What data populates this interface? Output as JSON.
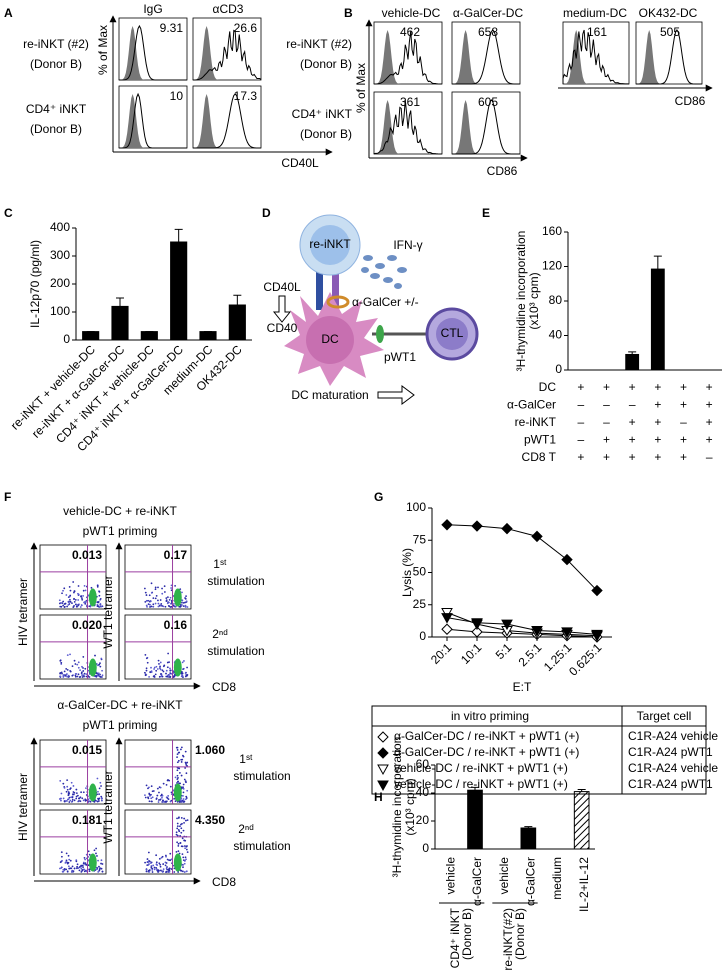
{
  "panel_letters": [
    "A",
    "B",
    "C",
    "D",
    "E",
    "F",
    "G",
    "H"
  ],
  "panel_a": {
    "columns": [
      "IgG",
      "αCD3"
    ],
    "rows": [
      [
        "re-iNKT (#2)",
        "(Donor B)"
      ],
      [
        "CD4⁺ iNKT",
        "(Donor B)"
      ]
    ],
    "y_label": "% of Max",
    "x_label": "CD40L",
    "values": [
      [
        9.31,
        26.6
      ],
      [
        10,
        17.3
      ]
    ]
  },
  "panel_b": {
    "columns": [
      "vehicle-DC",
      "α-GalCer-DC",
      "medium-DC",
      "OK432-DC"
    ],
    "rows": [
      [
        "re-iNKT (#2)",
        "(Donor B)"
      ],
      [
        "CD4⁺ iNKT",
        "(Donor B)"
      ]
    ],
    "y_label": "% of Max",
    "x_labels": [
      "CD86",
      "CD86"
    ],
    "values": [
      [
        462,
        658
      ],
      [
        361,
        605
      ]
    ],
    "values_right": [
      161,
      505
    ]
  },
  "panel_d": {
    "re_inkt": "re-iNKT",
    "ifn": "IFN-γ",
    "cd40l": "CD40L",
    "cd40": "CD40",
    "galcer": "α-GalCer +/-",
    "dc": "DC",
    "ctl": "CTL",
    "pwt1": "pWT1",
    "maturation": "DC maturation"
  },
  "panel_f": {
    "groups": [
      {
        "title": [
          "vehicle-DC + re-iNKT",
          "pWT1 priming"
        ],
        "y_labels": [
          "HIV tetramer",
          "WT1 tetramer"
        ],
        "x_label": "CD8",
        "stimulations": [
          [
            "1ˢᵗ",
            "stimulation"
          ],
          [
            "2ⁿᵈ",
            "stimulation"
          ]
        ],
        "quadrants": [
          [
            "0.013",
            "0.17"
          ],
          [
            "0.020",
            "0.16"
          ]
        ]
      },
      {
        "title": [
          "α-GalCer-DC + re-iNKT",
          "pWT1 priming"
        ],
        "y_labels": [
          "HIV tetramer",
          "WT1 tetramer"
        ],
        "x_label": "CD8",
        "stimulations": [
          [
            "1ˢᵗ",
            "stimulation"
          ],
          [
            "2ⁿᵈ",
            "stimulation"
          ]
        ],
        "quadrants": [
          [
            "0.015",
            "1.060"
          ],
          [
            "0.181",
            "4.350"
          ]
        ]
      }
    ]
  },
  "chart_data": [
    {
      "type": "bar",
      "y_label": [
        "IL-12p70 (pg/ml)"
      ],
      "categories": [
        "re-iNKT + vehicle-DC",
        "re-iNKT + α-GalCer-DC",
        "CD4⁺ iNKT + vehicle-DC",
        "CD4⁺ iNKT + α-GalCer-DC",
        "medium-DC",
        "OK432-DC"
      ],
      "values": [
        30,
        120,
        30,
        350,
        30,
        125
      ],
      "errors": [
        0,
        30,
        0,
        45,
        0,
        35
      ],
      "color": "#000000",
      "ylim": [
        0,
        400
      ],
      "yticks": [
        0,
        100,
        200,
        300,
        400
      ]
    },
    {
      "type": "bar",
      "y_label": [
        "³H-thymidine incorporation",
        "(x10³ cpm)"
      ],
      "values": [
        0,
        0,
        18,
        117,
        0,
        0
      ],
      "errors": [
        0,
        0,
        3,
        15,
        0,
        0
      ],
      "color": "#000000",
      "ylim": [
        0,
        160
      ],
      "yticks": [
        0,
        40,
        80,
        120,
        160
      ],
      "conditions": [
        {
          "label": "DC",
          "marks": [
            "+",
            "+",
            "+",
            "+",
            "+",
            "+"
          ]
        },
        {
          "label": "α-GalCer",
          "marks": [
            "–",
            "–",
            "–",
            "+",
            "+",
            "+"
          ]
        },
        {
          "label": "re-iNKT",
          "marks": [
            "–",
            "–",
            "+",
            "+",
            "–",
            "+"
          ]
        },
        {
          "label": "pWT1",
          "marks": [
            "–",
            "+",
            "+",
            "+",
            "+",
            "+"
          ]
        },
        {
          "label": "CD8 T",
          "marks": [
            "+",
            "+",
            "+",
            "+",
            "+",
            "–"
          ]
        }
      ]
    },
    {
      "type": "line",
      "y_label": "Lysis (%)",
      "x_label": "E:T",
      "categories": [
        "20:1",
        "10:1",
        "5:1",
        "2.5:1",
        "1.25:1",
        "0.625:1"
      ],
      "ylim": [
        0,
        100
      ],
      "yticks": [
        0,
        25,
        50,
        75,
        100
      ],
      "legend_header": [
        "in vitro  priming",
        "Target cell"
      ],
      "series": [
        {
          "name": "α-GalCer-DC / re-iNKT + pWT1 (+)",
          "target": "C1R-A24 vehicle",
          "marker": "diamond",
          "filled": false,
          "color": "#000000",
          "values": [
            6,
            4,
            3,
            2,
            1,
            0
          ]
        },
        {
          "name": "α-GalCer-DC / re-iNKT + pWT1 (+)",
          "target": "C1R-A24  pWT1",
          "marker": "diamond",
          "filled": true,
          "color": "#000000",
          "values": [
            87,
            86,
            84,
            78,
            60,
            36
          ]
        },
        {
          "name": "vehicle-DC / re-iNKT + pWT1 (+)",
          "target": "C1R-A24 vehicle",
          "marker": "triangle-down",
          "filled": false,
          "color": "#000000",
          "values": [
            19,
            10,
            5,
            3,
            2,
            1
          ]
        },
        {
          "name": "vehicle-DC / re-iNKT + pWT1 (+)",
          "target": "C1R-A24  pWT1",
          "marker": "triangle-down",
          "filled": true,
          "color": "#000000",
          "values": [
            15,
            11,
            10,
            5,
            4,
            2
          ]
        }
      ]
    },
    {
      "type": "bar",
      "y_label": [
        "³H-thymidine incorporation",
        "(x10³ cpm)"
      ],
      "categories": [
        "vehicle",
        "α-GalCer",
        "vehicle",
        "α-GalCer",
        "medium",
        "IL-2+IL-12"
      ],
      "group_labels": [
        [
          "CD4⁺ iNKT",
          "(Donor B)"
        ],
        [
          "re-iNKT(#2)",
          "(Donor B)"
        ]
      ],
      "values": [
        0,
        42,
        0,
        15,
        0,
        41
      ],
      "errors": [
        0,
        2,
        0,
        1,
        0,
        1.5
      ],
      "hatched": [
        false,
        false,
        false,
        false,
        false,
        true
      ],
      "color": "#000000",
      "ylim": [
        0,
        60
      ],
      "yticks": [
        0,
        20,
        40,
        60
      ]
    }
  ]
}
